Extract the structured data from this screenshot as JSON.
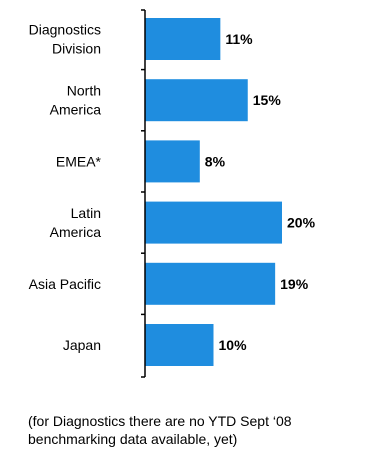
{
  "chart_data": {
    "type": "bar",
    "orientation": "horizontal",
    "categories": [
      [
        "Diagnostics",
        "Division"
      ],
      [
        "North",
        "America"
      ],
      [
        "EMEA*"
      ],
      [
        "Latin",
        "America"
      ],
      [
        "Asia Pacific"
      ],
      [
        "Japan"
      ]
    ],
    "values": [
      11,
      15,
      8,
      20,
      19,
      10
    ],
    "value_labels": [
      "11%",
      "15%",
      "8%",
      "20%",
      "19%",
      "10%"
    ],
    "xlim": [
      0,
      20
    ],
    "bar_color": "#1f8ddf",
    "grid": false,
    "legend": "none",
    "title": "",
    "xlabel": "",
    "ylabel": ""
  },
  "footnote": [
    "(for Diagnostics there are no YTD Sept ‘08",
    "benchmarking data available, yet)"
  ]
}
